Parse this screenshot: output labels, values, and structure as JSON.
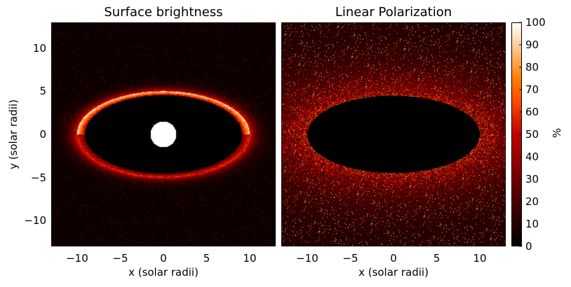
{
  "chart_data": [
    {
      "type": "heatmap",
      "title": "Surface brightness",
      "xlabel": "x (solar radii)",
      "ylabel": "y (solar radii)",
      "xlim": [
        -13,
        13
      ],
      "ylim": [
        -13,
        13
      ],
      "xticks": [
        -10,
        -5,
        0,
        5,
        10
      ],
      "xtick_labels": [
        "−10",
        "−5",
        "0",
        "5",
        "10"
      ],
      "yticks": [
        -10,
        -5,
        0,
        5,
        10
      ],
      "ytick_labels": [
        "−10",
        "−5",
        "0",
        "5",
        "10"
      ],
      "colormap": "gist_heat",
      "features": {
        "bright_elliptical_ring": {
          "center": [
            0,
            0
          ],
          "semi_major_axis_x": 10,
          "semi_minor_axis_y": 5
        },
        "saturated_central_disk": {
          "center": [
            0,
            0
          ],
          "radius": 1.5
        }
      }
    },
    {
      "type": "heatmap",
      "title": "Linear Polarization",
      "xlabel": "x (solar radii)",
      "ylabel": "",
      "xlim": [
        -13,
        13
      ],
      "ylim": [
        -13,
        13
      ],
      "xticks": [
        -10,
        -5,
        0,
        5,
        10
      ],
      "xtick_labels": [
        "−10",
        "−5",
        "0",
        "5",
        "10"
      ],
      "colormap": "gist_heat",
      "features": {
        "dark_elliptical_region": {
          "center": [
            0,
            0
          ],
          "semi_major_axis_x": 10,
          "semi_minor_axis_y": 4.5
        }
      },
      "colorbar": {
        "label": "%",
        "range": [
          0,
          100
        ],
        "ticks": [
          0,
          10,
          20,
          30,
          40,
          50,
          60,
          70,
          80,
          90,
          100
        ]
      }
    }
  ]
}
